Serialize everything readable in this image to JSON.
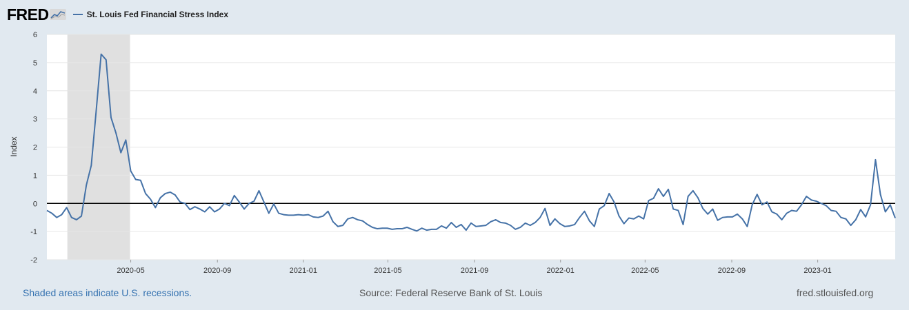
{
  "header": {
    "logo_text": "FRED",
    "legend_label": "St. Louis Fed Financial Stress Index"
  },
  "footer": {
    "recession_note": "Shaded areas indicate U.S. recessions.",
    "source": "Source: Federal Reserve Bank of St. Louis",
    "site": "fred.stlouisfed.org"
  },
  "colors": {
    "line": "#4572a7",
    "recession": "#e0e0e0",
    "zero_line": "#000000",
    "background": "#e1e9f0"
  },
  "chart_data": {
    "type": "line",
    "title": "St. Louis Fed Financial Stress Index",
    "ylabel": "Index",
    "xlabel": "",
    "ylim": [
      -2,
      6
    ],
    "yticks": [
      -2,
      -1,
      0,
      1,
      2,
      3,
      4,
      5,
      6
    ],
    "x_start": "2020-01-03",
    "x_end": "2023-04-21",
    "x_tick_dates": [
      "2020-05-01",
      "2020-09-01",
      "2021-01-01",
      "2021-05-01",
      "2021-09-01",
      "2022-01-01",
      "2022-05-01",
      "2022-09-01",
      "2023-01-01"
    ],
    "x_tick_labels": [
      "2020-05",
      "2020-09",
      "2021-01",
      "2021-05",
      "2021-09",
      "2022-01",
      "2022-05",
      "2022-09",
      "2023-01"
    ],
    "recession": [
      "2020-02-01",
      "2020-04-30"
    ],
    "series": [
      {
        "name": "St. Louis Fed Financial Stress Index",
        "frequency": "weekly",
        "values": [
          -0.25,
          -0.35,
          -0.5,
          -0.4,
          -0.15,
          -0.5,
          -0.58,
          -0.45,
          0.65,
          1.35,
          3.3,
          5.3,
          5.1,
          3.05,
          2.5,
          1.8,
          2.25,
          1.15,
          0.85,
          0.82,
          0.35,
          0.15,
          -0.15,
          0.2,
          0.35,
          0.4,
          0.3,
          0.05,
          0.0,
          -0.22,
          -0.12,
          -0.2,
          -0.3,
          -0.12,
          -0.3,
          -0.2,
          0.0,
          -0.08,
          0.28,
          0.05,
          -0.2,
          0.0,
          0.08,
          0.45,
          0.05,
          -0.35,
          -0.02,
          -0.35,
          -0.4,
          -0.42,
          -0.42,
          -0.4,
          -0.42,
          -0.4,
          -0.48,
          -0.5,
          -0.45,
          -0.28,
          -0.65,
          -0.82,
          -0.78,
          -0.55,
          -0.5,
          -0.58,
          -0.62,
          -0.75,
          -0.85,
          -0.9,
          -0.88,
          -0.88,
          -0.92,
          -0.9,
          -0.9,
          -0.85,
          -0.92,
          -0.98,
          -0.88,
          -0.95,
          -0.92,
          -0.92,
          -0.8,
          -0.88,
          -0.68,
          -0.85,
          -0.75,
          -0.95,
          -0.7,
          -0.82,
          -0.8,
          -0.78,
          -0.65,
          -0.58,
          -0.68,
          -0.7,
          -0.78,
          -0.92,
          -0.85,
          -0.7,
          -0.78,
          -0.68,
          -0.5,
          -0.18,
          -0.78,
          -0.55,
          -0.72,
          -0.82,
          -0.8,
          -0.75,
          -0.5,
          -0.28,
          -0.62,
          -0.82,
          -0.2,
          -0.08,
          0.35,
          0.05,
          -0.45,
          -0.72,
          -0.52,
          -0.55,
          -0.45,
          -0.55,
          0.1,
          0.18,
          0.52,
          0.25,
          0.5,
          -0.2,
          -0.25,
          -0.75,
          0.25,
          0.45,
          0.2,
          -0.18,
          -0.38,
          -0.2,
          -0.6,
          -0.5,
          -0.48,
          -0.48,
          -0.38,
          -0.55,
          -0.82,
          -0.05,
          0.32,
          -0.05,
          0.05,
          -0.3,
          -0.38,
          -0.58,
          -0.35,
          -0.25,
          -0.28,
          -0.05,
          0.25,
          0.12,
          0.08,
          0.0,
          -0.08,
          -0.25,
          -0.28,
          -0.5,
          -0.55,
          -0.78,
          -0.58,
          -0.22,
          -0.48,
          -0.05,
          1.55,
          0.32,
          -0.3,
          -0.05,
          -0.52
        ]
      }
    ]
  }
}
